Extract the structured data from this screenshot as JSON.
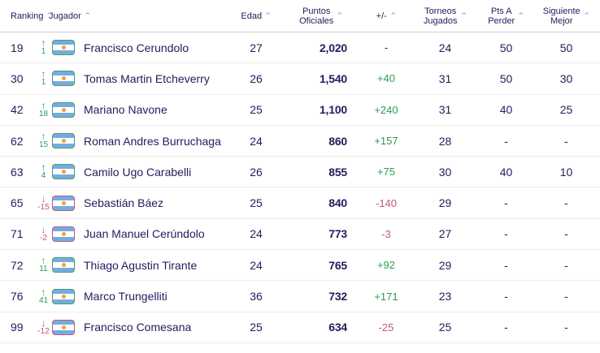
{
  "icons": {
    "sort_caret": "⌃"
  },
  "colors": {
    "text_navy": "#20205f",
    "positive_green": "#2e9a54",
    "negative_red": "#c05a6e",
    "flag_border_up": "#4b9d70",
    "flag_border_down": "#c25b80",
    "flag_blue": "#74acdf",
    "flag_sun": "#f0a132",
    "caret": "#9191c2",
    "row_divider": "#ececec",
    "header_divider": "#cfcfcf"
  },
  "table": {
    "headers": {
      "ranking": "Ranking",
      "jugador": "Jugador",
      "edad": "Edad",
      "puntos_line1": "Puntos",
      "puntos_line2": "Oficiales",
      "plus_minus": "+/-",
      "torneos_line1": "Torneos",
      "torneos_line2": "Jugados",
      "pts_line1": "Pts A",
      "pts_line2": "Perder",
      "siguiente_line1": "Siguiente",
      "siguiente_line2": "Mejor"
    },
    "rows": [
      {
        "ranking": "19",
        "direction": "up",
        "delta": "1",
        "flag": "argentina",
        "player": "Francisco Cerundolo",
        "age": "27",
        "points": "2,020",
        "change": "-",
        "tournaments": "24",
        "pts_to_lose": "50",
        "next_best": "50"
      },
      {
        "ranking": "30",
        "direction": "up",
        "delta": "1",
        "flag": "argentina",
        "player": "Tomas Martin Etcheverry",
        "age": "26",
        "points": "1,540",
        "change": "+40",
        "tournaments": "31",
        "pts_to_lose": "50",
        "next_best": "30"
      },
      {
        "ranking": "42",
        "direction": "up",
        "delta": "18",
        "flag": "argentina",
        "player": "Mariano Navone",
        "age": "25",
        "points": "1,100",
        "change": "+240",
        "tournaments": "31",
        "pts_to_lose": "40",
        "next_best": "25"
      },
      {
        "ranking": "62",
        "direction": "up",
        "delta": "15",
        "flag": "argentina",
        "player": "Roman Andres Burruchaga",
        "age": "24",
        "points": "860",
        "change": "+157",
        "tournaments": "28",
        "pts_to_lose": "-",
        "next_best": "-"
      },
      {
        "ranking": "63",
        "direction": "up",
        "delta": "4",
        "flag": "argentina",
        "player": "Camilo Ugo Carabelli",
        "age": "26",
        "points": "855",
        "change": "+75",
        "tournaments": "30",
        "pts_to_lose": "40",
        "next_best": "10"
      },
      {
        "ranking": "65",
        "direction": "down",
        "delta": "-15",
        "flag": "argentina",
        "player": "Sebastián Báez",
        "age": "25",
        "points": "840",
        "change": "-140",
        "tournaments": "29",
        "pts_to_lose": "-",
        "next_best": "-"
      },
      {
        "ranking": "71",
        "direction": "down",
        "delta": "-2",
        "flag": "argentina",
        "player": "Juan Manuel Cerúndolo",
        "age": "24",
        "points": "773",
        "change": "-3",
        "tournaments": "27",
        "pts_to_lose": "-",
        "next_best": "-"
      },
      {
        "ranking": "72",
        "direction": "up",
        "delta": "11",
        "flag": "argentina",
        "player": "Thiago Agustin Tirante",
        "age": "24",
        "points": "765",
        "change": "+92",
        "tournaments": "29",
        "pts_to_lose": "-",
        "next_best": "-"
      },
      {
        "ranking": "76",
        "direction": "up",
        "delta": "41",
        "flag": "argentina",
        "player": "Marco Trungelliti",
        "age": "36",
        "points": "732",
        "change": "+171",
        "tournaments": "23",
        "pts_to_lose": "-",
        "next_best": "-"
      },
      {
        "ranking": "99",
        "direction": "down",
        "delta": "-12",
        "flag": "argentina",
        "player": "Francisco Comesana",
        "age": "25",
        "points": "634",
        "change": "-25",
        "tournaments": "25",
        "pts_to_lose": "-",
        "next_best": "-"
      }
    ]
  }
}
